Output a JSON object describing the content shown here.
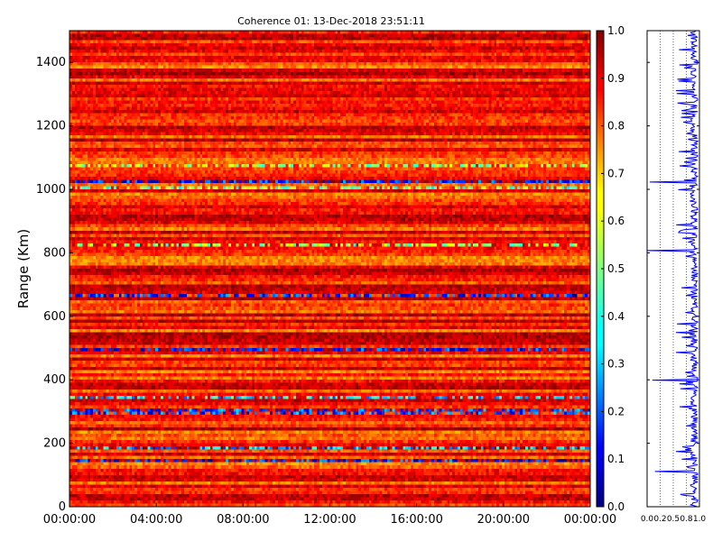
{
  "title": "Coherence 01: 13-Dec-2018 23:51:11",
  "chart_data": [
    {
      "type": "heatmap",
      "ylabel": "Range (Km)",
      "xlabel": "",
      "x_tick_labels": [
        "00:00:00",
        "04:00:00",
        "08:00:00",
        "12:00:00",
        "16:00:00",
        "20:00:00",
        "00:00:00"
      ],
      "xlim_hours": [
        0,
        24
      ],
      "y_ticks": [
        0,
        200,
        400,
        600,
        800,
        1000,
        1200,
        1400
      ],
      "ylim": [
        0,
        1500
      ],
      "colormap": "jet",
      "color_range": [
        0.0,
        1.0
      ],
      "colorbar_ticks": [
        "0.0",
        "0.1",
        "0.2",
        "0.3",
        "0.4",
        "0.5",
        "0.6",
        "0.7",
        "0.8",
        "0.9",
        "1.0"
      ],
      "grid": false,
      "low_coherence_bands_km": [
        {
          "range": 1022,
          "coherence": 0.15
        },
        {
          "range": 1003,
          "coherence": 0.5
        },
        {
          "range": 1072,
          "coherence": 0.55
        },
        {
          "range": 662,
          "coherence": 0.15
        },
        {
          "range": 498,
          "coherence": 0.15
        },
        {
          "range": 342,
          "coherence": 0.35
        },
        {
          "range": 300,
          "coherence": 0.2
        },
        {
          "range": 185,
          "coherence": 0.3
        },
        {
          "range": 148,
          "coherence": 0.15
        },
        {
          "range": 828,
          "coherence": 0.55
        }
      ],
      "background_coherence": 0.85
    },
    {
      "type": "line",
      "description_axis": "mean coherence vs range",
      "x_tick_labels": [
        "0.0",
        "0.2",
        "0.5",
        "0.8",
        "1.0"
      ],
      "xlim": [
        0,
        1
      ],
      "ylim": [
        0,
        1500
      ],
      "y_ticks": [
        0,
        200,
        400,
        600,
        800,
        1000,
        1200,
        1400
      ],
      "series_color": "#0000ff",
      "dips": [
        {
          "range": 1022,
          "value": 0.05
        },
        {
          "range": 808,
          "value": 0.0
        },
        {
          "range": 400,
          "value": 0.1
        },
        {
          "range": 485,
          "value": 0.55
        },
        {
          "range": 1310,
          "value": 0.55
        },
        {
          "range": 1270,
          "value": 0.7
        },
        {
          "range": 110,
          "value": 0.15
        },
        {
          "range": 35,
          "value": 0.7
        }
      ],
      "baseline_value": 0.9
    }
  ]
}
